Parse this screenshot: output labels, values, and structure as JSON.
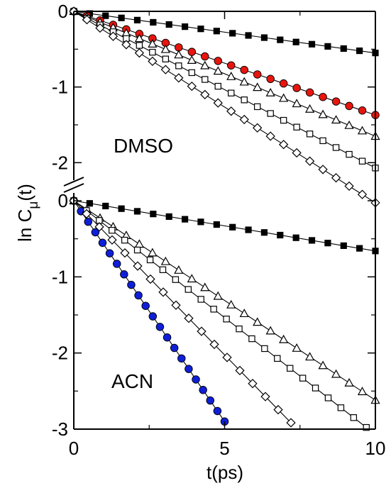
{
  "chart_data": {
    "type": "scatter",
    "xlabel": "t(ps)",
    "ylabel": "ln C",
    "ylabel_sub": "μ",
    "ylabel_suffix": "(t)",
    "xlim": [
      0,
      10
    ],
    "x_ticks": [
      {
        "value": 0,
        "label": "0"
      },
      {
        "value": 5,
        "label": "5"
      },
      {
        "value": 10,
        "label": "10"
      }
    ],
    "grid": false,
    "legend": "none",
    "axis_break": true,
    "panels": [
      {
        "name": "top",
        "label": "DMSO",
        "ylim": [
          -2.25,
          0
        ],
        "y_ticks": [
          {
            "value": 0,
            "label": "0"
          },
          {
            "value": -1,
            "label": "-1"
          },
          {
            "value": -2,
            "label": "-2"
          }
        ],
        "series": [
          {
            "marker": "filled-square",
            "color": "#000000",
            "x0": 0,
            "x1": 10,
            "slope": -0.055,
            "n": 20,
            "fit": true
          },
          {
            "marker": "filled-circle",
            "color": "#e8150f",
            "x0": 0,
            "x1": 10,
            "slope": -0.137,
            "n": 24,
            "fit": true
          },
          {
            "marker": "open-triangle",
            "color": "#000000",
            "x0": 0,
            "x1": 10,
            "slope": -0.165,
            "n": 24,
            "fit": true
          },
          {
            "marker": "open-square",
            "color": "#000000",
            "x0": 0,
            "x1": 10,
            "slope": -0.207,
            "n": 24,
            "fit": true
          },
          {
            "marker": "open-diamond",
            "color": "#000000",
            "x0": 0,
            "x1": 10,
            "slope": -0.253,
            "n": 24,
            "fit": true
          }
        ]
      },
      {
        "name": "bottom",
        "label": "ACN",
        "ylim": [
          -3,
          0
        ],
        "y_ticks": [
          {
            "value": 0,
            "label": "0"
          },
          {
            "value": -1,
            "label": "-1"
          },
          {
            "value": -2,
            "label": "-2"
          },
          {
            "value": -3,
            "label": "-3"
          }
        ],
        "series": [
          {
            "marker": "filled-square",
            "color": "#000000",
            "x0": 0,
            "x1": 10,
            "slope": -0.066,
            "n": 20,
            "fit": true
          },
          {
            "marker": "filled-circle",
            "color": "#0f1fd8",
            "x0": 0,
            "x1": 5.0,
            "slope": -0.58,
            "n": 22,
            "fit": true
          },
          {
            "marker": "open-triangle",
            "color": "#000000",
            "x0": 0,
            "x1": 10,
            "slope": -0.262,
            "n": 24,
            "fit": true
          },
          {
            "marker": "open-square",
            "color": "#000000",
            "x0": 0,
            "x1": 9.7,
            "slope": -0.307,
            "n": 24,
            "fit": true
          },
          {
            "marker": "open-diamond",
            "color": "#000000",
            "x0": 0,
            "x1": 7.2,
            "slope": -0.405,
            "n": 18,
            "fit": true
          }
        ]
      }
    ]
  }
}
